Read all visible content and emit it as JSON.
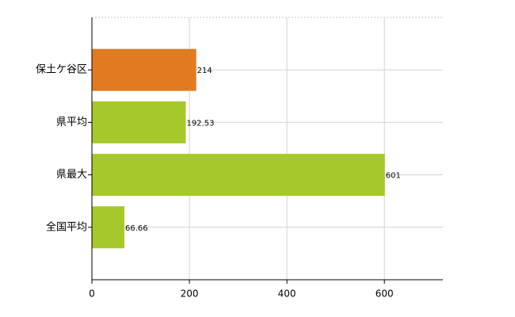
{
  "chart_data": {
    "type": "barh",
    "categories": [
      "保土ケ谷区",
      "県平均",
      "県最大",
      "全国平均"
    ],
    "values": [
      214,
      192.53,
      601,
      66.66
    ],
    "colors": [
      "#e07b22",
      "#a5c92a",
      "#a5c92a",
      "#a5c92a"
    ],
    "xlim": [
      0,
      720
    ],
    "xticks": [
      0,
      200,
      400,
      600
    ],
    "grid": true
  }
}
